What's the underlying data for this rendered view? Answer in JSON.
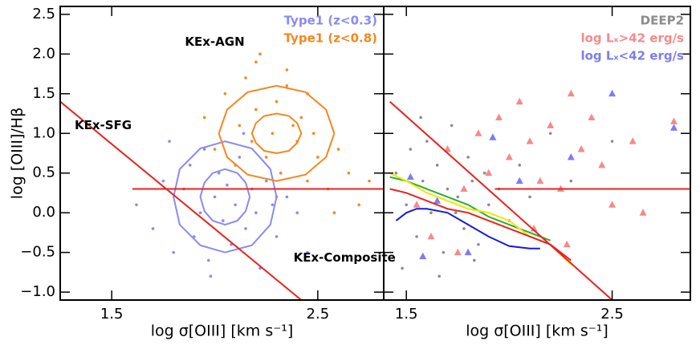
{
  "chart_data": [
    {
      "type": "scatter",
      "ylabel": "log [OIII]/Hβ",
      "xlabel": "log σ[OIII] [km s⁻¹]",
      "xlim": [
        1.25,
        2.82
      ],
      "ylim": [
        -1.1,
        2.6
      ],
      "xticks": [
        1.5,
        2.5
      ],
      "yticks": [
        {
          "value": -1,
          "label": "−1.0"
        },
        {
          "value": -0.5,
          "label": "−0.5"
        },
        {
          "value": 0,
          "label": "0.0"
        },
        {
          "value": 0.5,
          "label": "0.5"
        },
        {
          "value": 1,
          "label": "1.0"
        },
        {
          "value": 1.5,
          "label": "1.5"
        },
        {
          "value": 2,
          "label": "2.0"
        },
        {
          "value": 2.5,
          "label": "2.5"
        }
      ],
      "annotations": [
        "KEx-AGN",
        "KEx-SFG",
        "KEx-Composite"
      ],
      "series": [
        {
          "name": "Type1 (z<0.3)",
          "color": "#8a8af5",
          "marker": "dot",
          "x": [
            1.62,
            1.7,
            1.75,
            1.8,
            1.85,
            1.88,
            1.9,
            1.93,
            1.95,
            1.97,
            2.0,
            2.02,
            2.04,
            2.06,
            2.08,
            2.1,
            2.12,
            2.15,
            2.18,
            2.2,
            2.22,
            2.25,
            2.28,
            2.3,
            2.35,
            2.4,
            2.45,
            1.78,
            1.98,
            2.14
          ],
          "values": [
            0.1,
            -0.2,
            0.4,
            -0.5,
            0.3,
            0.6,
            -0.3,
            0.0,
            0.8,
            -0.6,
            0.2,
            0.5,
            -0.1,
            0.35,
            -0.4,
            0.1,
            0.7,
            -0.2,
            0.3,
            0.0,
            -0.7,
            0.4,
            0.1,
            -0.3,
            0.2,
            0.0,
            -0.5,
            0.9,
            -0.8,
            1.0
          ]
        },
        {
          "name": "Type1 (z<0.8)",
          "color": "#f5871f",
          "marker": "dot",
          "x": [
            1.95,
            2.0,
            2.05,
            2.1,
            2.12,
            2.15,
            2.18,
            2.2,
            2.22,
            2.25,
            2.28,
            2.3,
            2.32,
            2.35,
            2.38,
            2.4,
            2.42,
            2.45,
            2.48,
            2.5,
            2.55,
            2.6,
            2.65,
            2.7,
            2.75,
            2.2,
            2.3,
            2.35,
            2.45,
            2.58
          ],
          "values": [
            1.2,
            0.8,
            1.5,
            0.6,
            1.1,
            1.7,
            0.9,
            1.3,
            2.0,
            0.7,
            1.0,
            1.4,
            0.5,
            1.8,
            1.1,
            0.9,
            1.2,
            0.4,
            1.0,
            0.7,
            0.3,
            0.8,
            0.5,
            0.1,
            0.4,
            1.9,
            0.2,
            1.6,
            1.5,
            0.0
          ]
        },
        {
          "color": "#8a8af5",
          "marker": "line",
          "x": [
            2.3,
            2.27,
            2.18,
            2.05,
            1.93,
            1.83,
            1.8,
            1.83,
            1.93,
            2.05,
            2.18,
            2.27,
            2.3
          ],
          "values": [
            0.2,
            0.55,
            0.81,
            0.9,
            0.81,
            0.55,
            0.2,
            -0.15,
            -0.41,
            -0.5,
            -0.41,
            -0.15,
            0.2
          ]
        },
        {
          "color": "#8a8af5",
          "marker": "line",
          "x": [
            2.17,
            2.15,
            2.11,
            2.05,
            1.99,
            1.95,
            1.93,
            1.95,
            1.99,
            2.05,
            2.11,
            2.15,
            2.17
          ],
          "values": [
            0.2,
            0.38,
            0.5,
            0.55,
            0.5,
            0.38,
            0.2,
            0.02,
            -0.1,
            -0.15,
            -0.1,
            0.02,
            0.2
          ]
        },
        {
          "color": "#f5871f",
          "marker": "line",
          "x": [
            2.58,
            2.54,
            2.44,
            2.3,
            2.16,
            2.06,
            2.02,
            2.06,
            2.16,
            2.3,
            2.44,
            2.54,
            2.58
          ],
          "values": [
            1.0,
            1.3,
            1.52,
            1.6,
            1.52,
            1.3,
            1.0,
            0.7,
            0.48,
            0.4,
            0.48,
            0.7,
            1.0
          ]
        },
        {
          "color": "#f5871f",
          "marker": "line",
          "x": [
            2.42,
            2.4,
            2.36,
            2.3,
            2.24,
            2.2,
            2.18,
            2.2,
            2.24,
            2.3,
            2.36,
            2.4,
            2.42
          ],
          "values": [
            1.0,
            1.13,
            1.22,
            1.25,
            1.22,
            1.13,
            1.0,
            0.88,
            0.78,
            0.75,
            0.78,
            0.88,
            1.0
          ]
        },
        {
          "color": "#e8231f",
          "marker": "line",
          "x": [
            1.25,
            2.42
          ],
          "values": [
            1.4,
            -1.1
          ]
        },
        {
          "color": "#e8231f",
          "marker": "line",
          "x": [
            1.6,
            2.82
          ],
          "values": [
            0.3,
            0.3
          ]
        }
      ]
    },
    {
      "type": "scatter",
      "xlabel": "log σ[OIII] [km s⁻¹]",
      "xlim": [
        1.39,
        2.88
      ],
      "ylim": [
        -1.1,
        2.6
      ],
      "xticks": [
        1.5,
        2.5
      ],
      "yticks": [
        -1,
        -0.5,
        0,
        0.5,
        1,
        1.5,
        2,
        2.5
      ],
      "series": [
        {
          "name": "DEEP2",
          "color": "#8c8c8c",
          "marker": "dot",
          "x": [
            1.45,
            1.5,
            1.52,
            1.55,
            1.58,
            1.6,
            1.62,
            1.65,
            1.68,
            1.7,
            1.72,
            1.75,
            1.78,
            1.8,
            1.82,
            1.85,
            1.88,
            1.9,
            1.95,
            2.0,
            2.05,
            2.1,
            2.2,
            2.3,
            2.5,
            1.48,
            1.57,
            1.66,
            1.74,
            1.83
          ],
          "values": [
            0.5,
            0.1,
            0.8,
            -0.3,
            0.4,
            0.9,
            0.0,
            0.6,
            -0.5,
            0.3,
            1.1,
            0.2,
            -0.2,
            0.7,
            0.4,
            -0.4,
            0.5,
            0.1,
            0.3,
            -0.1,
            0.6,
            0.2,
            1.0,
            0.4,
            0.9,
            -0.7,
            1.2,
            -0.8,
            0.0,
            -0.6
          ]
        },
        {
          "name": "log Lₓ>42 erg/s",
          "color": "#f58a8a",
          "marker": "triangle",
          "x": [
            1.55,
            1.62,
            1.7,
            1.78,
            1.85,
            1.9,
            1.95,
            2.0,
            2.05,
            2.1,
            2.15,
            2.2,
            2.25,
            2.3,
            2.35,
            2.4,
            2.45,
            2.5,
            2.6,
            2.65,
            2.8,
            1.75,
            2.12,
            2.28
          ],
          "values": [
            0.1,
            -0.3,
            0.8,
            0.3,
            1.0,
            0.5,
            1.2,
            0.7,
            1.4,
            0.9,
            0.4,
            1.1,
            0.3,
            1.5,
            0.8,
            1.2,
            0.6,
            0.1,
            0.9,
            0.0,
            1.15,
            -0.5,
            -0.2,
            -0.4
          ]
        },
        {
          "name": "log Lₓ<42 erg/s",
          "color": "#7d7df0",
          "marker": "triangle",
          "x": [
            1.52,
            1.65,
            1.8,
            1.92,
            2.05,
            2.3,
            2.5,
            2.8,
            1.58
          ],
          "values": [
            0.45,
            0.15,
            -0.5,
            0.95,
            0.4,
            0.7,
            1.5,
            1.07,
            -0.55
          ]
        },
        {
          "color": "#1a1adc",
          "marker": "line",
          "x": [
            1.45,
            1.5,
            1.55,
            1.6,
            1.7,
            1.8,
            1.9,
            2.0,
            2.1,
            2.15
          ],
          "values": [
            -0.1,
            0.0,
            0.05,
            0.05,
            0.0,
            -0.15,
            -0.3,
            -0.42,
            -0.45,
            -0.45
          ]
        },
        {
          "color": "#2ab02a",
          "marker": "line",
          "x": [
            1.42,
            1.5,
            1.6,
            1.7,
            1.8,
            1.9,
            2.0,
            2.1,
            2.2
          ],
          "values": [
            0.45,
            0.4,
            0.3,
            0.2,
            0.1,
            -0.05,
            -0.15,
            -0.25,
            -0.35
          ]
        },
        {
          "color": "#f2e600",
          "marker": "line",
          "x": [
            1.42,
            1.5,
            1.6,
            1.7,
            1.8,
            1.9,
            2.0,
            2.1,
            2.2,
            2.3
          ],
          "values": [
            0.5,
            0.4,
            0.25,
            0.15,
            0.05,
            0.0,
            -0.1,
            -0.3,
            -0.4,
            -0.65
          ]
        },
        {
          "color": "#e8231f",
          "marker": "line",
          "x": [
            1.42,
            1.5,
            1.6,
            1.7,
            1.8,
            1.9,
            2.0,
            2.1,
            2.2,
            2.3
          ],
          "values": [
            0.3,
            0.25,
            0.15,
            0.05,
            0.0,
            -0.1,
            -0.2,
            -0.3,
            -0.4,
            -0.6
          ]
        },
        {
          "color": "#e8231f",
          "marker": "line",
          "x": [
            1.42,
            2.5
          ],
          "values": [
            1.4,
            -1.1
          ]
        },
        {
          "color": "#e8231f",
          "marker": "line",
          "x": [
            1.93,
            2.88
          ],
          "values": [
            0.3,
            0.3
          ]
        }
      ]
    }
  ]
}
